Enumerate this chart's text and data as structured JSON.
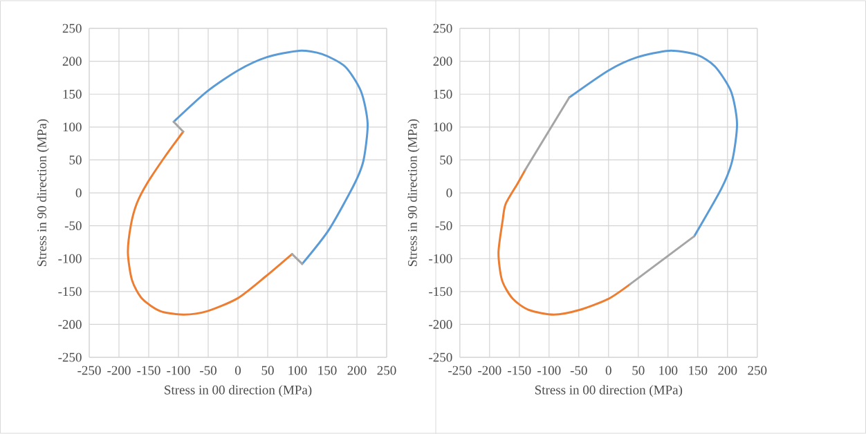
{
  "chart_data": [
    {
      "type": "line",
      "xlabel": "Stress in 00 direction (MPa)",
      "ylabel": "Stress in 90 direction (MPa)",
      "xlim": [
        -250,
        250
      ],
      "ylim": [
        -250,
        250
      ],
      "xticks": [
        -250,
        -200,
        -150,
        -100,
        -50,
        0,
        50,
        100,
        150,
        200,
        250
      ],
      "yticks": [
        -250,
        -200,
        -150,
        -100,
        -50,
        0,
        50,
        100,
        150,
        200,
        250
      ],
      "grid": true,
      "marker": "none",
      "line_style": "solid",
      "series": [
        {
          "color": "#5b9bd5",
          "x": [
            -108,
            -52,
            0,
            48,
            103,
            141,
            180,
            207,
            218,
            211,
            196,
            153,
            108
          ],
          "values": [
            108,
            154,
            186,
            206,
            216,
            211,
            192,
            154,
            105,
            49,
            14,
            -56,
            -108
          ]
        },
        {
          "color": "#ed7d31",
          "x": [
            91,
            48,
            0,
            -52,
            -91,
            -130,
            -161,
            -178,
            -185,
            -180,
            -170,
            -153,
            -122,
            -92
          ],
          "values": [
            -93,
            -126,
            -160,
            -180,
            -185,
            -180,
            -161,
            -133,
            -91,
            -49,
            -16,
            14,
            56,
            93
          ]
        },
        {
          "color": "#a5a5a5",
          "x": [
            108,
            91
          ],
          "values": [
            -108,
            -93
          ]
        },
        {
          "color": "#a5a5a5",
          "x": [
            -108,
            -92
          ],
          "values": [
            108,
            93
          ]
        }
      ]
    },
    {
      "type": "line",
      "xlabel": "Stress in 00 direction (MPa)",
      "ylabel": "Stress in 90 direction (MPa)",
      "xlim": [
        -250,
        250
      ],
      "ylim": [
        -250,
        250
      ],
      "xticks": [
        -250,
        -200,
        -150,
        -100,
        -50,
        0,
        50,
        100,
        150,
        200,
        250
      ],
      "yticks": [
        -250,
        -200,
        -150,
        -100,
        -50,
        0,
        50,
        100,
        150,
        200,
        250
      ],
      "grid": true,
      "marker": "none",
      "line_style": "solid",
      "series": [
        {
          "color": "#5b9bd5",
          "x": [
            -66,
            0,
            48,
            102,
            148,
            179,
            206,
            216,
            208,
            190,
            144
          ],
          "values": [
            145,
            186,
            206,
            216,
            210,
            192,
            154,
            105,
            49,
            7,
            -66
          ]
        },
        {
          "color": "#ed7d31",
          "x": [
            36,
            0,
            -49,
            -92,
            -134,
            -161,
            -179,
            -185,
            -178,
            -173,
            -153,
            -140
          ],
          "values": [
            -139,
            -161,
            -178,
            -185,
            -178,
            -161,
            -133,
            -91,
            -42,
            -17,
            14,
            35
          ]
        },
        {
          "color": "#a5a5a5",
          "x": [
            144,
            36
          ],
          "values": [
            -66,
            -139
          ]
        },
        {
          "color": "#a5a5a5",
          "x": [
            -66,
            -140
          ],
          "values": [
            145,
            35
          ]
        }
      ]
    }
  ]
}
